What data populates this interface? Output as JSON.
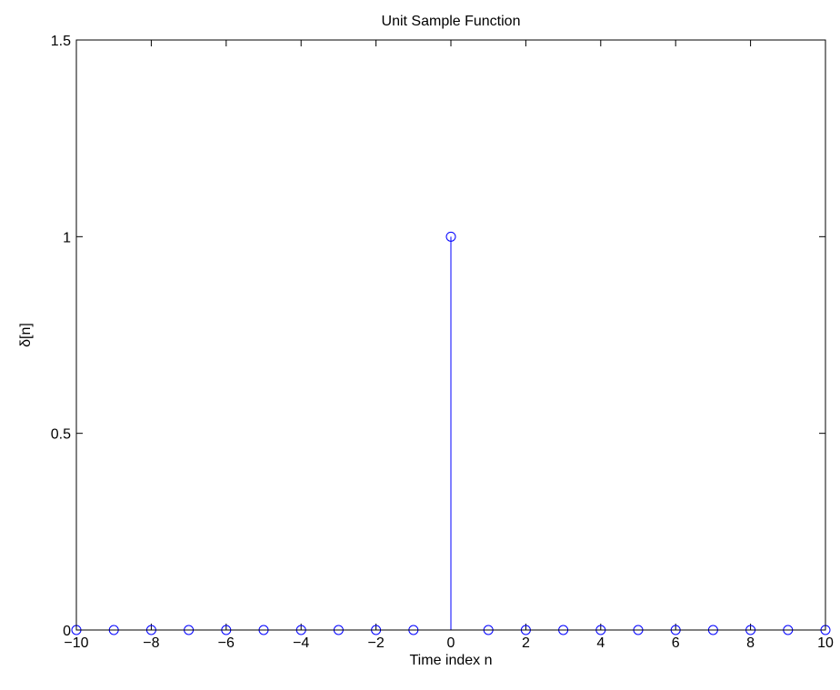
{
  "chart_data": {
    "type": "scatter",
    "style": "stem",
    "title": "Unit Sample Function",
    "xlabel": "Time index n",
    "ylabel": "δ[n]",
    "xlim": [
      -10,
      10
    ],
    "ylim": [
      0,
      1.5
    ],
    "xticks": [
      -10,
      -8,
      -6,
      -4,
      -2,
      0,
      2,
      4,
      6,
      8,
      10
    ],
    "xtick_labels": [
      "−10",
      "−8",
      "−6",
      "−4",
      "−2",
      "0",
      "2",
      "4",
      "6",
      "8",
      "10"
    ],
    "yticks": [
      0,
      0.5,
      1,
      1.5
    ],
    "ytick_labels": [
      "0",
      "0.5",
      "1",
      "1.5"
    ],
    "grid": false,
    "marker": "circle",
    "color": "#0000ff",
    "x": [
      -10,
      -9,
      -8,
      -7,
      -6,
      -5,
      -4,
      -3,
      -2,
      -1,
      0,
      1,
      2,
      3,
      4,
      5,
      6,
      7,
      8,
      9,
      10
    ],
    "y": [
      0,
      0,
      0,
      0,
      0,
      0,
      0,
      0,
      0,
      0,
      1,
      0,
      0,
      0,
      0,
      0,
      0,
      0,
      0,
      0,
      0
    ]
  }
}
